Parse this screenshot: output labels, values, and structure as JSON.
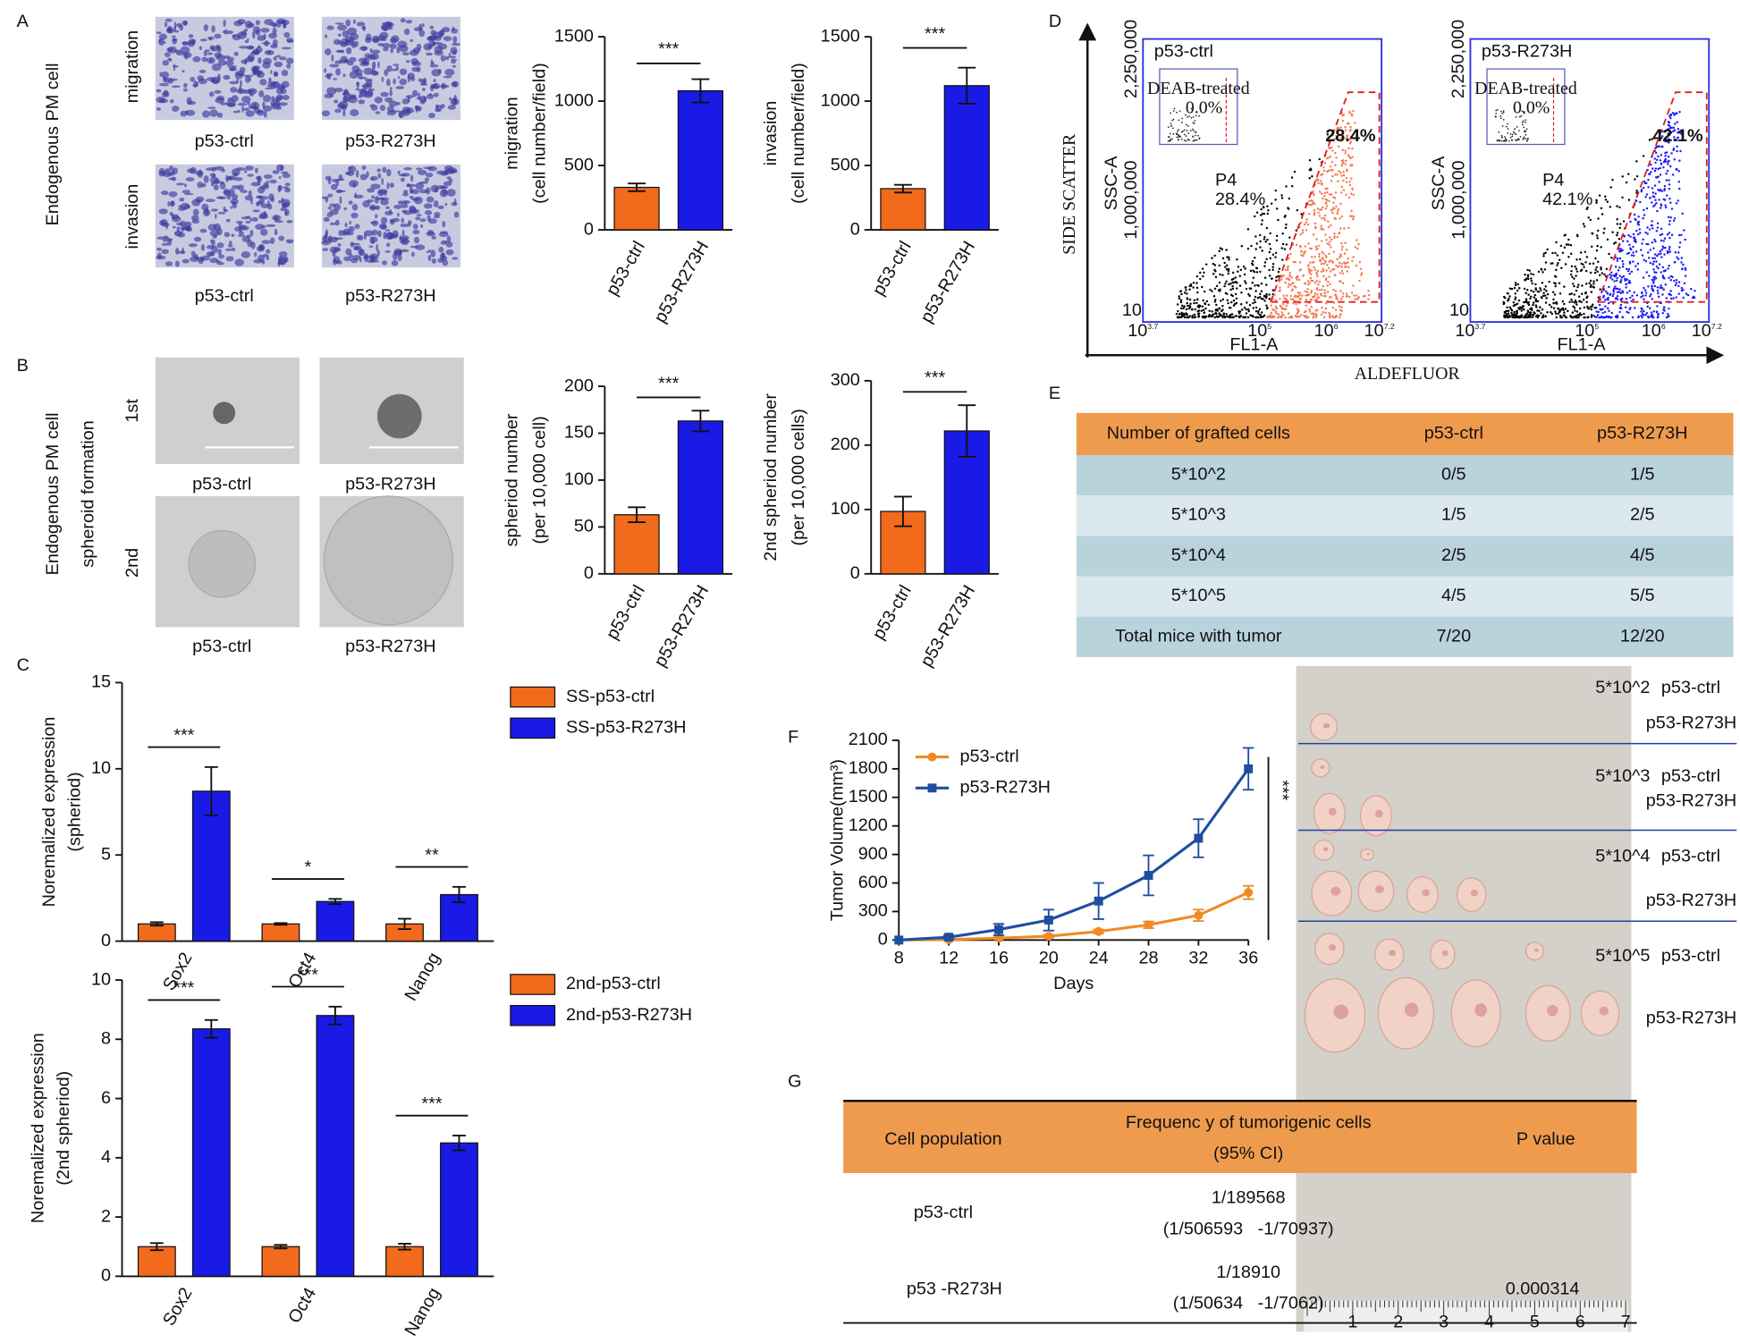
{
  "panel_letters": [
    "A",
    "B",
    "C",
    "D",
    "E",
    "F",
    "G"
  ],
  "panel_a": {
    "side": "Endogenous PM cell",
    "rows": [
      "migration",
      "invasion"
    ],
    "columns": [
      "p53-ctrl",
      "p53-R273H"
    ]
  },
  "panel_b": {
    "side": [
      "Endogenous PM cell",
      "spheroid formation"
    ],
    "rows": [
      "1st",
      "2nd"
    ],
    "columns": [
      "p53-ctrl",
      "p53-R273H"
    ]
  },
  "chart_data": [
    {
      "type": "bar",
      "categories": [
        "p53-ctrl",
        "p53-R273H"
      ],
      "values": [
        330,
        1080
      ],
      "errors": [
        30,
        90
      ],
      "colors": [
        "#f26a1b",
        "#1a1ae6"
      ],
      "ylabel": [
        "migration",
        "(cell number/field)"
      ],
      "ylim": [
        0,
        1500
      ],
      "yticks": [
        0,
        500,
        1000,
        1500
      ],
      "significance": "***"
    },
    {
      "type": "bar",
      "categories": [
        "p53-ctrl",
        "p53-R273H"
      ],
      "values": [
        320,
        1120
      ],
      "errors": [
        30,
        140
      ],
      "colors": [
        "#f26a1b",
        "#1a1ae6"
      ],
      "ylabel": [
        "invasion",
        "(cell number/field)"
      ],
      "ylim": [
        0,
        1500
      ],
      "yticks": [
        0,
        500,
        1000,
        1500
      ],
      "significance": "***"
    },
    {
      "type": "bar",
      "categories": [
        "p53-ctrl",
        "p53-R273H"
      ],
      "values": [
        63,
        163
      ],
      "errors": [
        8,
        11
      ],
      "colors": [
        "#f26a1b",
        "#1a1ae6"
      ],
      "ylabel": [
        "spheriod number",
        "(per 10,000 cell)"
      ],
      "ylim": [
        0,
        200
      ],
      "yticks": [
        0,
        50,
        100,
        150,
        200
      ],
      "significance": "***"
    },
    {
      "type": "bar",
      "categories": [
        "p53-ctrl",
        "p53-R273H"
      ],
      "values": [
        97,
        222
      ],
      "errors": [
        23,
        40
      ],
      "colors": [
        "#f26a1b",
        "#1a1ae6"
      ],
      "ylabel": [
        "2nd spheriod number",
        "(per 10,000 cells)"
      ],
      "ylim": [
        0,
        300
      ],
      "yticks": [
        0,
        100,
        200,
        300
      ],
      "significance": "***"
    },
    {
      "type": "bar",
      "categories": [
        "Sox2",
        "Oct4",
        "Nanog"
      ],
      "series": [
        {
          "name": "SS-p53-ctrl",
          "color": "#f26a1b",
          "values": [
            1.0,
            1.0,
            1.0
          ],
          "errors": [
            0.1,
            0.05,
            0.3
          ]
        },
        {
          "name": "SS-p53-R273H",
          "color": "#1a1ae6",
          "values": [
            8.7,
            2.3,
            2.7
          ],
          "errors": [
            1.4,
            0.15,
            0.45
          ]
        }
      ],
      "ylabel": [
        "Noremalized expression",
        "(spheriod)"
      ],
      "ylim": [
        0,
        15
      ],
      "yticks": [
        0,
        5,
        10,
        15
      ],
      "significance": [
        "***",
        "*",
        "**"
      ]
    },
    {
      "type": "bar",
      "categories": [
        "Sox2",
        "Oct4",
        "Nanog"
      ],
      "series": [
        {
          "name": "2nd-p53-ctrl",
          "color": "#f26a1b",
          "values": [
            1.0,
            1.0,
            1.0
          ],
          "errors": [
            0.12,
            0.06,
            0.1
          ]
        },
        {
          "name": "2nd-p53-R273H",
          "color": "#1a1ae6",
          "values": [
            8.35,
            8.8,
            4.5
          ],
          "errors": [
            0.3,
            0.3,
            0.25
          ]
        }
      ],
      "ylabel": [
        "Noremalized expression",
        "(2nd spheriod)"
      ],
      "ylim": [
        0,
        10
      ],
      "yticks": [
        0,
        2,
        4,
        6,
        8,
        10
      ],
      "significance": [
        "***",
        "***",
        "***"
      ]
    },
    {
      "type": "line",
      "x": [
        8,
        12,
        16,
        20,
        24,
        28,
        32,
        36
      ],
      "series": [
        {
          "name": "p53-ctrl",
          "color": "#f08a24",
          "marker": "circle",
          "values": [
            0,
            5,
            20,
            40,
            90,
            160,
            260,
            500
          ],
          "errors": [
            0,
            5,
            10,
            15,
            20,
            35,
            60,
            70
          ]
        },
        {
          "name": "p53-R273H",
          "color": "#1f4ea0",
          "marker": "square",
          "values": [
            0,
            30,
            110,
            210,
            410,
            680,
            1070,
            1800
          ],
          "errors": [
            0,
            20,
            60,
            110,
            190,
            210,
            200,
            220
          ]
        }
      ],
      "xlabel": "Days",
      "ylabel": "Tumor Volume(mm³)",
      "xlim": [
        8,
        36
      ],
      "xticks": [
        8,
        12,
        16,
        20,
        24,
        28,
        32,
        36
      ],
      "ylim": [
        0,
        2100
      ],
      "yticks": [
        0,
        300,
        600,
        900,
        1200,
        1500,
        1800,
        2100
      ],
      "significance": "***"
    }
  ],
  "panel_d": {
    "axis_y": "SIDE SCATTER",
    "axis_x": "ALDEFLUOR",
    "y_label": "SSC-A",
    "x_label": "FL1-A",
    "y_ticks": [
      "2,250,000",
      "1,000,000",
      "10"
    ],
    "x_ticks": [
      {
        "base": "10",
        "exp": "3.7"
      },
      {
        "base": "10",
        "exp": "5"
      },
      {
        "base": "10",
        "exp": "6"
      },
      {
        "base": "10",
        "exp": "7.2"
      }
    ],
    "plots": [
      {
        "title": "p53-ctrl",
        "gate_percent": "28.4%",
        "gate_name": "P4",
        "gate_name_percent": "28.4%",
        "inset_label": "DEAB-treated",
        "inset_percent": "0.0%",
        "color": "#f47a50"
      },
      {
        "title": "p53-R273H",
        "gate_percent": "42.1%",
        "gate_name": "P4",
        "gate_name_percent": "42.1%",
        "inset_label": "DEAB-treated",
        "inset_percent": "0.0%",
        "color": "#1a1aff"
      }
    ]
  },
  "table_e": {
    "header": [
      "Number of grafted cells",
      "p53-ctrl",
      "p53-R273H"
    ],
    "rows": [
      [
        "5*10^2",
        "0/5",
        "1/5"
      ],
      [
        "5*10^3",
        "1/5",
        "2/5"
      ],
      [
        "5*10^4",
        "2/5",
        "4/5"
      ],
      [
        "5*10^5",
        "4/5",
        "5/5"
      ],
      [
        "Total mice with tumor",
        "7/20",
        "12/20"
      ]
    ]
  },
  "tumor_photo": {
    "groups": [
      {
        "dose": "5*10^2",
        "labels": [
          "p53-ctrl",
          "p53-R273H"
        ]
      },
      {
        "dose": "5*10^3",
        "labels": [
          "p53-ctrl",
          "p53-R273H"
        ]
      },
      {
        "dose": "5*10^4",
        "labels": [
          "p53-ctrl",
          "p53-R273H"
        ]
      },
      {
        "dose": "5*10^5",
        "labels": [
          "p53-ctrl",
          "p53-R273H"
        ]
      }
    ],
    "ruler": [
      "1",
      "2",
      "3",
      "4",
      "5",
      "6",
      "7"
    ]
  },
  "table_g": {
    "header": [
      "Cell population",
      "Frequenc y of tumorigenic cells",
      "(95% CI)",
      "P value"
    ],
    "rows": [
      [
        "p53-ctrl",
        "1/189568",
        "(1/506593   -1/70937)"
      ],
      [
        "p53 -R273H",
        "1/18910",
        "(1/50634   -1/7062)",
        "0.000314"
      ]
    ]
  }
}
